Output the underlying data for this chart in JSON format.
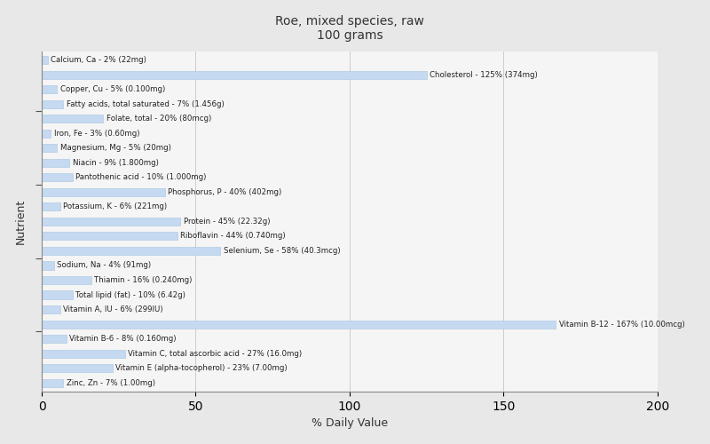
{
  "title": "Roe, mixed species, raw\n100 grams",
  "xlabel": "% Daily Value",
  "ylabel": "Nutrient",
  "xlim": [
    0,
    200
  ],
  "xticks": [
    0,
    50,
    100,
    150,
    200
  ],
  "bar_color": "#c5d9f1",
  "bar_edge_color": "#a8c4e0",
  "background_color": "#e8e8e8",
  "plot_bg_color": "#f5f5f5",
  "text_color": "#222222",
  "nutrients": [
    {
      "label": "Calcium, Ca - 2% (22mg)",
      "value": 2
    },
    {
      "label": "Cholesterol - 125% (374mg)",
      "value": 125
    },
    {
      "label": "Copper, Cu - 5% (0.100mg)",
      "value": 5
    },
    {
      "label": "Fatty acids, total saturated - 7% (1.456g)",
      "value": 7
    },
    {
      "label": "Folate, total - 20% (80mcg)",
      "value": 20
    },
    {
      "label": "Iron, Fe - 3% (0.60mg)",
      "value": 3
    },
    {
      "label": "Magnesium, Mg - 5% (20mg)",
      "value": 5
    },
    {
      "label": "Niacin - 9% (1.800mg)",
      "value": 9
    },
    {
      "label": "Pantothenic acid - 10% (1.000mg)",
      "value": 10
    },
    {
      "label": "Phosphorus, P - 40% (402mg)",
      "value": 40
    },
    {
      "label": "Potassium, K - 6% (221mg)",
      "value": 6
    },
    {
      "label": "Protein - 45% (22.32g)",
      "value": 45
    },
    {
      "label": "Riboflavin - 44% (0.740mg)",
      "value": 44
    },
    {
      "label": "Selenium, Se - 58% (40.3mcg)",
      "value": 58
    },
    {
      "label": "Sodium, Na - 4% (91mg)",
      "value": 4
    },
    {
      "label": "Thiamin - 16% (0.240mg)",
      "value": 16
    },
    {
      "label": "Total lipid (fat) - 10% (6.42g)",
      "value": 10
    },
    {
      "label": "Vitamin A, IU - 6% (299IU)",
      "value": 6
    },
    {
      "label": "Vitamin B-12 - 167% (10.00mcg)",
      "value": 167
    },
    {
      "label": "Vitamin B-6 - 8% (0.160mg)",
      "value": 8
    },
    {
      "label": "Vitamin C, total ascorbic acid - 27% (16.0mg)",
      "value": 27
    },
    {
      "label": "Vitamin E (alpha-tocopherol) - 23% (7.00mg)",
      "value": 23
    },
    {
      "label": "Zinc, Zn - 7% (1.00mg)",
      "value": 7
    }
  ]
}
